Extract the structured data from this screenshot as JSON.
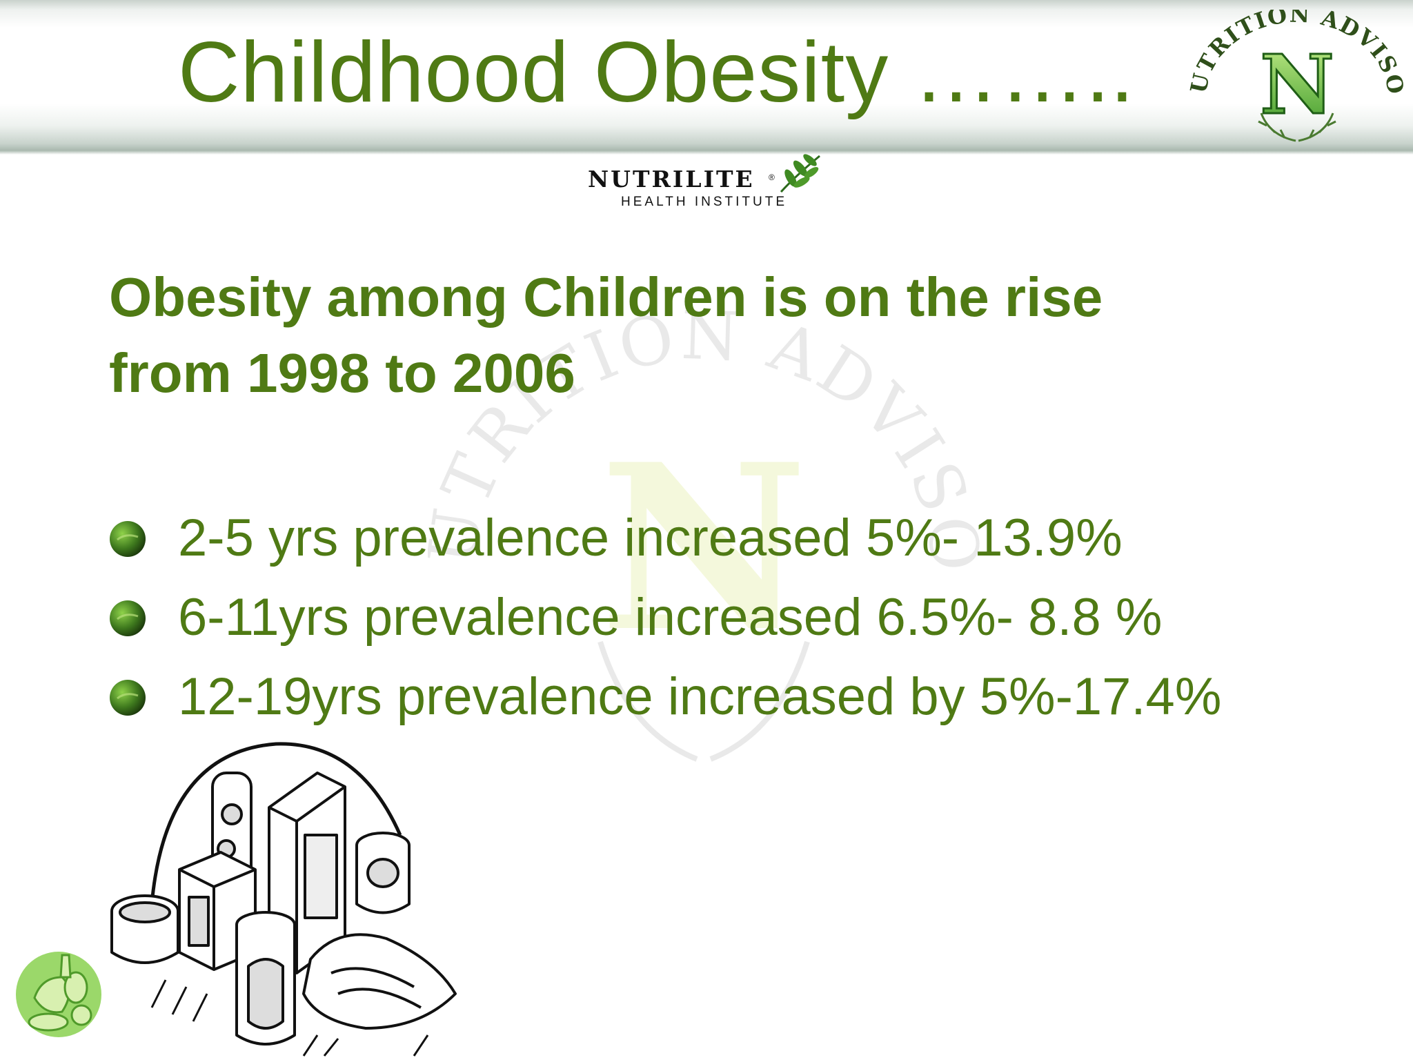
{
  "slide": {
    "title": "Childhood Obesity ……..",
    "subtitle_lines": [
      "Obesity among Children is on the rise",
      "from 1998 to 2006"
    ],
    "bullets": [
      {
        "text": "2-5 yrs prevalence increased  5%- 13.9%"
      },
      {
        "text": "6-11yrs prevalence increased 6.5%- 8.8 %"
      },
      {
        "text": "12-19yrs prevalence increased by 5%-17.4%"
      }
    ]
  },
  "brand": {
    "name": "NUTRILITE",
    "registered": "®",
    "tagline": "HEALTH INSTITUTE"
  },
  "seal": {
    "text": "NUTRITION ADVISOR",
    "letter": "N"
  },
  "colors": {
    "accent": "#4f7a14",
    "seal_green": "#3d9a2a",
    "bullet_green": "#3f7a1e"
  },
  "icons": {
    "bullet": "green-sphere-bullet-icon",
    "food": "fruit-vegetables-icon",
    "clipart": "packaged-food-clipart"
  }
}
